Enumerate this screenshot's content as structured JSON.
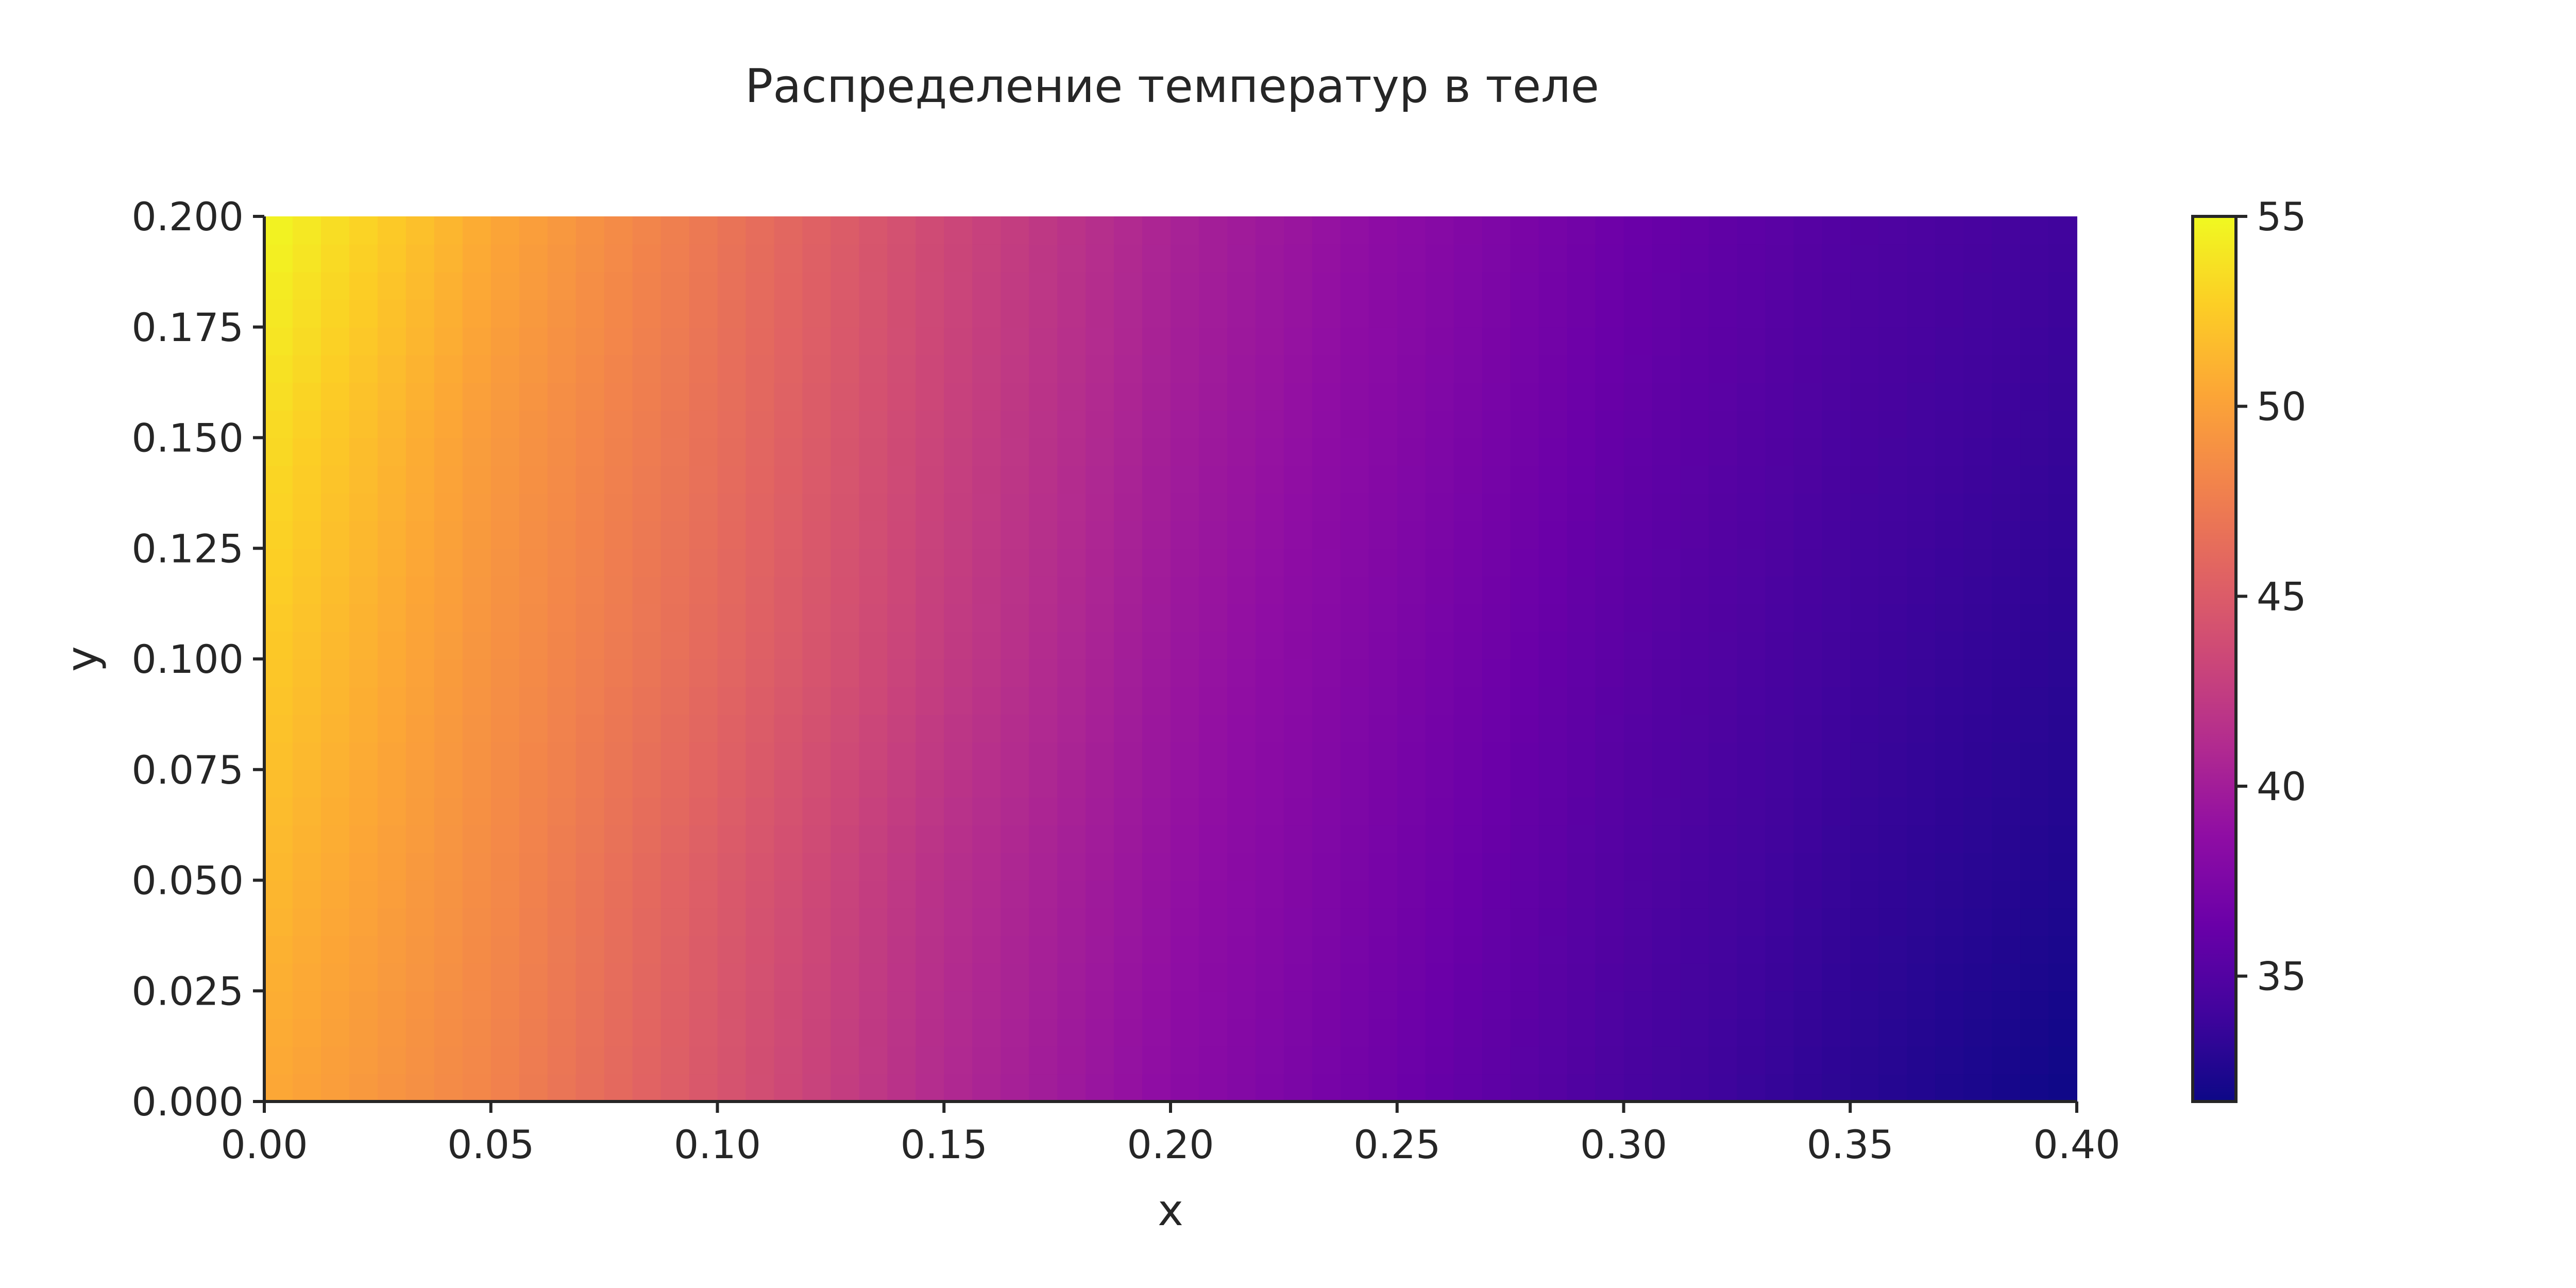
{
  "chart_data": {
    "type": "heatmap",
    "title": "Распределение температур в теле",
    "xlabel": "x",
    "ylabel": "y",
    "xlim": [
      0.0,
      0.4
    ],
    "ylim": [
      0.0,
      0.2
    ],
    "x_ticks": [
      "0.00",
      "0.05",
      "0.10",
      "0.15",
      "0.20",
      "0.25",
      "0.30",
      "0.35",
      "0.40"
    ],
    "y_ticks": [
      "0.000",
      "0.025",
      "0.050",
      "0.075",
      "0.100",
      "0.125",
      "0.150",
      "0.175",
      "0.200"
    ],
    "colormap": "plasma",
    "colorbar": {
      "range": [
        31.7,
        55.0
      ],
      "ticks": [
        "35",
        "40",
        "45",
        "50",
        "55"
      ]
    },
    "grid": false,
    "field": {
      "x": [
        0.0,
        0.05,
        0.1,
        0.15,
        0.2,
        0.25,
        0.3,
        0.35,
        0.4
      ],
      "y": [
        0.0,
        0.05,
        0.1,
        0.15,
        0.2
      ],
      "values": [
        [
          50.5,
          48.0,
          44.5,
          41.0,
          38.5,
          36.5,
          34.5,
          33.0,
          31.7
        ],
        [
          51.5,
          48.5,
          45.0,
          41.5,
          39.0,
          37.0,
          35.0,
          33.5,
          32.5
        ],
        [
          52.5,
          49.0,
          46.0,
          42.5,
          39.5,
          37.5,
          35.5,
          34.0,
          33.0
        ],
        [
          53.5,
          49.5,
          46.5,
          43.0,
          40.0,
          38.0,
          36.0,
          34.5,
          33.5
        ],
        [
          55.0,
          50.5,
          47.0,
          43.5,
          40.5,
          38.5,
          36.5,
          35.0,
          34.0
        ]
      ]
    }
  }
}
